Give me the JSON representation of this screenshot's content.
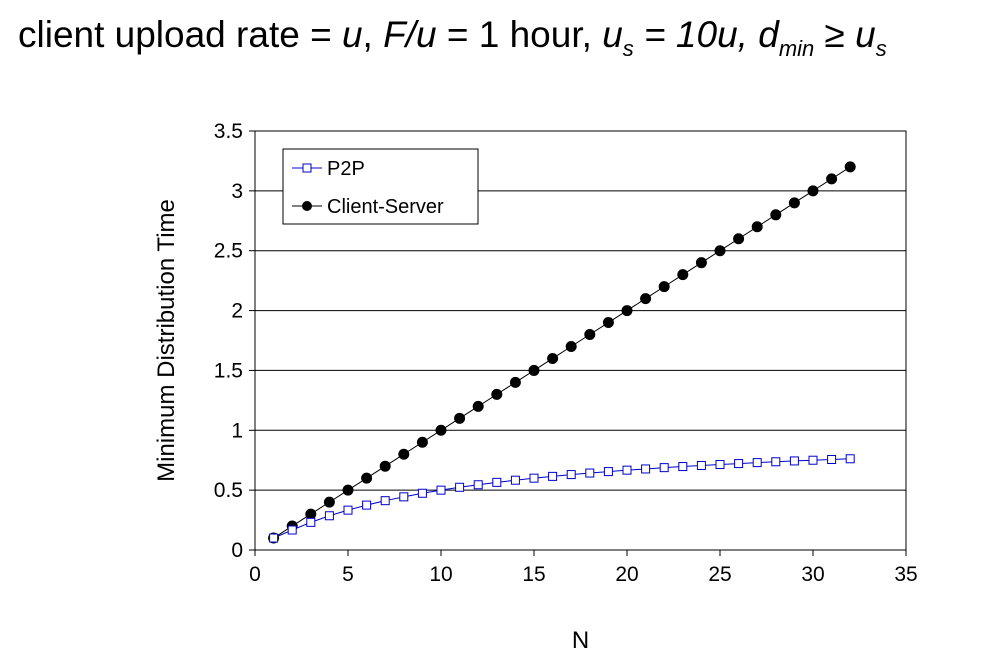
{
  "title": {
    "prefix": "client upload rate = ",
    "u": "u",
    "sep1": ",  ",
    "fu": "F/u",
    "hour": " = 1 hour,  ",
    "us_base": "u",
    "us_sub": "s",
    "us_eq": " = 10u,  ",
    "dmin_base": "d",
    "dmin_sub": "min",
    "geq": " ≥ ",
    "us2_base": "u",
    "us2_sub": "s"
  },
  "chart_data": {
    "type": "line",
    "title": "client upload rate = u, F/u = 1 hour, u_s = 10u, d_min ≥ u_s",
    "xlabel": "N",
    "ylabel": "Minimum Distribution Time",
    "xlim": [
      0,
      35
    ],
    "ylim": [
      0,
      3.5
    ],
    "xticks": [
      0,
      5,
      10,
      15,
      20,
      25,
      30,
      35
    ],
    "yticks": [
      0,
      0.5,
      1,
      1.5,
      2,
      2.5,
      3,
      3.5
    ],
    "ytick_labels": [
      "0",
      "0.5",
      "1",
      "1.5",
      "2",
      "2.5",
      "3",
      "3.5"
    ],
    "grid": "horizontal",
    "legend_position": "top-left",
    "x": [
      1,
      2,
      3,
      4,
      5,
      6,
      7,
      8,
      9,
      10,
      11,
      12,
      13,
      14,
      15,
      16,
      17,
      18,
      19,
      20,
      21,
      22,
      23,
      24,
      25,
      26,
      27,
      28,
      29,
      30,
      31,
      32
    ],
    "series": [
      {
        "name": "P2P",
        "color": "#0000cc",
        "marker": "open-square",
        "values": [
          0.1,
          0.167,
          0.231,
          0.286,
          0.333,
          0.375,
          0.412,
          0.444,
          0.474,
          0.5,
          0.524,
          0.545,
          0.565,
          0.583,
          0.6,
          0.615,
          0.63,
          0.643,
          0.655,
          0.667,
          0.677,
          0.688,
          0.697,
          0.706,
          0.714,
          0.722,
          0.73,
          0.737,
          0.744,
          0.75,
          0.756,
          0.762
        ]
      },
      {
        "name": "Client-Server",
        "color": "#000000",
        "marker": "filled-circle",
        "values": [
          0.1,
          0.2,
          0.3,
          0.4,
          0.5,
          0.6,
          0.7,
          0.8,
          0.9,
          1.0,
          1.1,
          1.2,
          1.3,
          1.4,
          1.5,
          1.6,
          1.7,
          1.8,
          1.9,
          2.0,
          2.1,
          2.2,
          2.3,
          2.4,
          2.5,
          2.6,
          2.7,
          2.8,
          2.9,
          3.0,
          3.1,
          3.2
        ]
      }
    ]
  }
}
